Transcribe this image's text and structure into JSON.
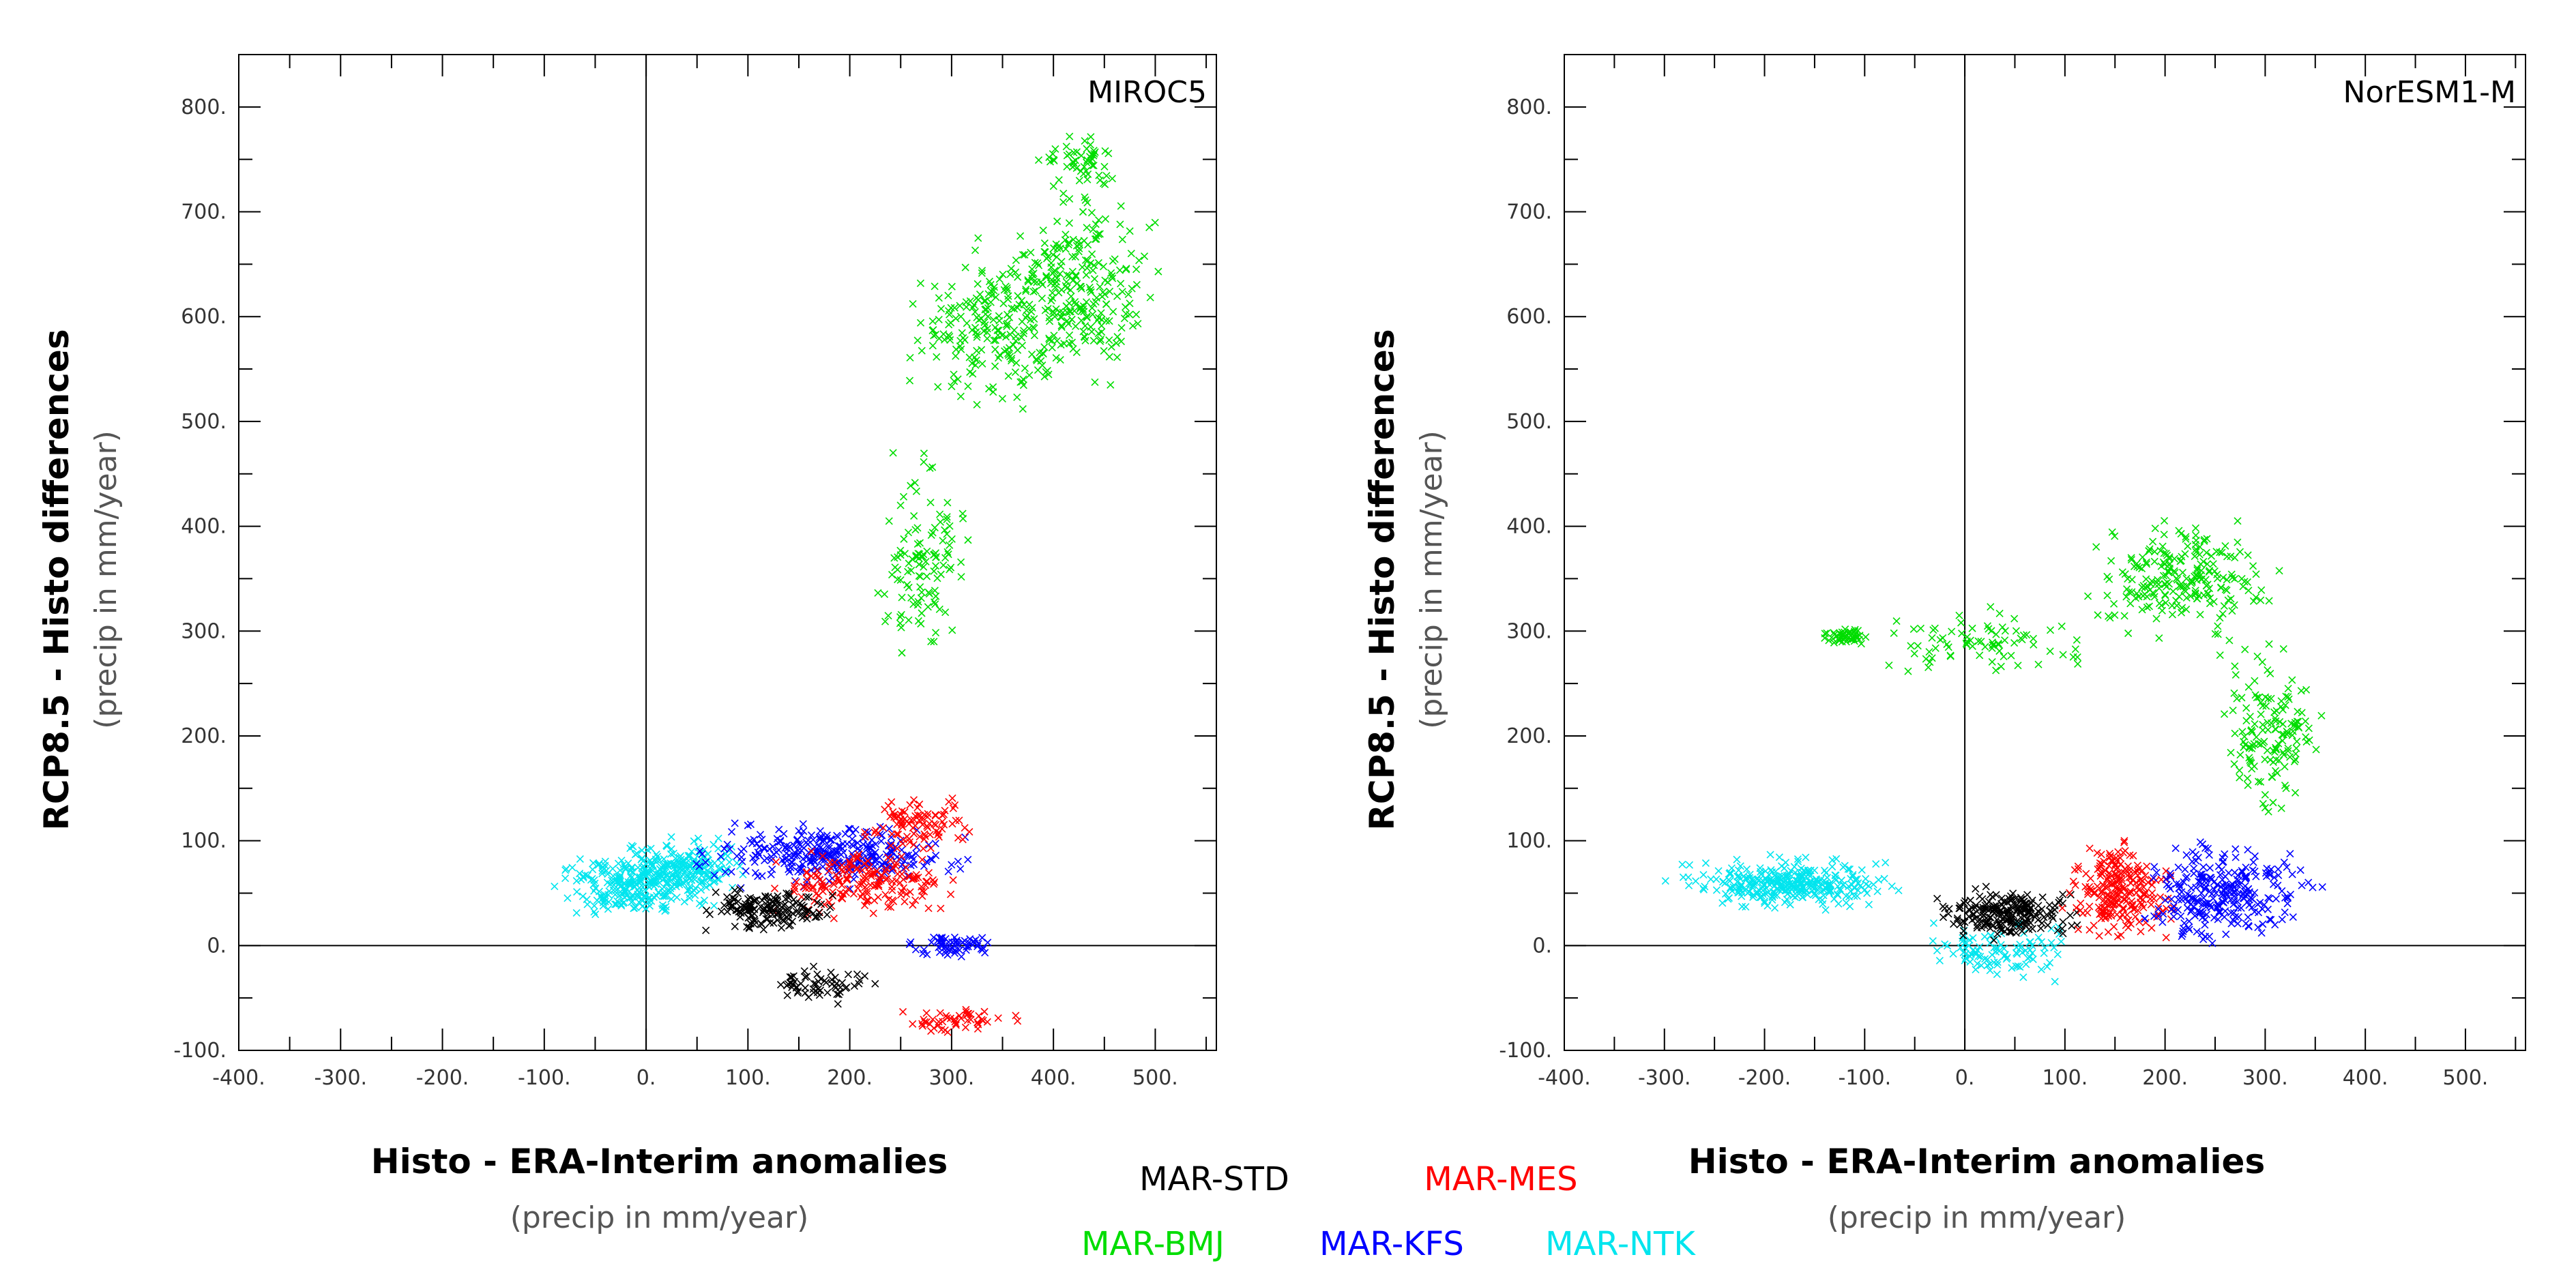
{
  "colors": {
    "MAR-STD": "#000000",
    "MAR-MES": "#ff0000",
    "MAR-BMJ": "#00dd00",
    "MAR-KFS": "#0000ff",
    "MAR-NTK": "#00e5ee"
  },
  "legend": [
    "MAR-STD",
    "MAR-MES",
    "MAR-BMJ",
    "MAR-KFS",
    "MAR-NTK"
  ],
  "chart_data": [
    {
      "type": "scatter",
      "title": "MIROC5",
      "xlabel": "Histo - ERA-Interim anomalies",
      "xlabel_sub": "(precip in mm/year)",
      "ylabel": "RCP8.5 - Histo differences",
      "ylabel_sub": "(precip in mm/year)",
      "xlim": [
        -400,
        560
      ],
      "ylim": [
        -100,
        850
      ],
      "xticks": [
        -400,
        -300,
        -200,
        -100,
        0,
        100,
        200,
        300,
        400,
        500
      ],
      "xtick_labels": [
        "-400.",
        "-300.",
        "-200.",
        "-100.",
        "0.",
        "100.",
        "200.",
        "300.",
        "400.",
        "500."
      ],
      "yticks": [
        -100,
        0,
        100,
        200,
        300,
        400,
        500,
        600,
        700,
        800
      ],
      "ytick_labels": [
        "-100.",
        "0.",
        "100.",
        "200.",
        "300.",
        "400.",
        "500.",
        "600.",
        "700.",
        "800."
      ],
      "reference_lines": {
        "x": 0,
        "y": 0
      },
      "marker": "x",
      "series": [
        {
          "name": "MAR-NTK",
          "clusters": [
            {
              "x": [
                -120,
                90
              ],
              "y": [
                20,
                100
              ],
              "n": 260
            },
            {
              "x": [
                -40,
                120
              ],
              "y": [
                40,
                110
              ],
              "n": 160
            }
          ]
        },
        {
          "name": "MAR-KFS",
          "clusters": [
            {
              "x": [
                20,
                340
              ],
              "y": [
                50,
                125
              ],
              "n": 320
            },
            {
              "x": [
                240,
                360
              ],
              "y": [
                -15,
                15
              ],
              "n": 60
            }
          ]
        },
        {
          "name": "MAR-MES",
          "clusters": [
            {
              "x": [
                100,
                330
              ],
              "y": [
                20,
                100
              ],
              "n": 180
            },
            {
              "x": [
                200,
                340
              ],
              "y": [
                80,
                150
              ],
              "n": 90
            },
            {
              "x": [
                230,
                380
              ],
              "y": [
                -85,
                -55
              ],
              "n": 50
            }
          ]
        },
        {
          "name": "MAR-STD",
          "clusters": [
            {
              "x": [
                40,
                200
              ],
              "y": [
                10,
                60
              ],
              "n": 160
            },
            {
              "x": [
                90,
                240
              ],
              "y": [
                -60,
                -15
              ],
              "n": 60
            }
          ]
        },
        {
          "name": "MAR-BMJ",
          "clusters": [
            {
              "x": [
                230,
                450
              ],
              "y": [
                490,
                690
              ],
              "n": 220
            },
            {
              "x": [
                330,
                520
              ],
              "y": [
                520,
                730
              ],
              "n": 240
            },
            {
              "x": [
                380,
                470
              ],
              "y": [
                700,
                790
              ],
              "n": 60
            },
            {
              "x": [
                220,
                330
              ],
              "y": [
                250,
                490
              ],
              "n": 120
            }
          ]
        }
      ]
    },
    {
      "type": "scatter",
      "title": "NorESM1-M",
      "xlabel": "Histo - ERA-Interim anomalies",
      "xlabel_sub": "(precip in mm/year)",
      "ylabel": "RCP8.5 - Histo differences",
      "ylabel_sub": "(precip in mm/year)",
      "xlim": [
        -400,
        560
      ],
      "ylim": [
        -100,
        850
      ],
      "xticks": [
        -400,
        -300,
        -200,
        -100,
        0,
        100,
        200,
        300,
        400,
        500
      ],
      "xtick_labels": [
        "-400.",
        "-300.",
        "-200.",
        "-100.",
        "0.",
        "100.",
        "200.",
        "300.",
        "400.",
        "500."
      ],
      "yticks": [
        -100,
        0,
        100,
        200,
        300,
        400,
        500,
        600,
        700,
        800
      ],
      "ytick_labels": [
        "-100.",
        "0.",
        "100.",
        "200.",
        "300.",
        "400.",
        "500.",
        "600.",
        "700.",
        "800."
      ],
      "reference_lines": {
        "x": 0,
        "y": 0
      },
      "marker": "x",
      "series": [
        {
          "name": "MAR-BMJ",
          "clusters": [
            {
              "x": [
                -145,
                -95
              ],
              "y": [
                285,
                305
              ],
              "n": 50
            },
            {
              "x": [
                -100,
                150
              ],
              "y": [
                250,
                330
              ],
              "n": 80
            },
            {
              "x": [
                100,
                330
              ],
              "y": [
                280,
                420
              ],
              "n": 230
            },
            {
              "x": [
                240,
                370
              ],
              "y": [
                110,
                300
              ],
              "n": 150
            }
          ]
        },
        {
          "name": "MAR-NTK",
          "clusters": [
            {
              "x": [
                -310,
                -40
              ],
              "y": [
                30,
                90
              ],
              "n": 320
            },
            {
              "x": [
                -60,
                130
              ],
              "y": [
                -40,
                30
              ],
              "n": 100
            }
          ]
        },
        {
          "name": "MAR-STD",
          "clusters": [
            {
              "x": [
                -40,
                130
              ],
              "y": [
                0,
                60
              ],
              "n": 220
            }
          ]
        },
        {
          "name": "MAR-MES",
          "clusters": [
            {
              "x": [
                90,
                220
              ],
              "y": [
                -10,
                110
              ],
              "n": 230
            }
          ]
        },
        {
          "name": "MAR-KFS",
          "clusters": [
            {
              "x": [
                160,
                360
              ],
              "y": [
                -10,
                110
              ],
              "n": 280
            }
          ]
        }
      ]
    }
  ]
}
